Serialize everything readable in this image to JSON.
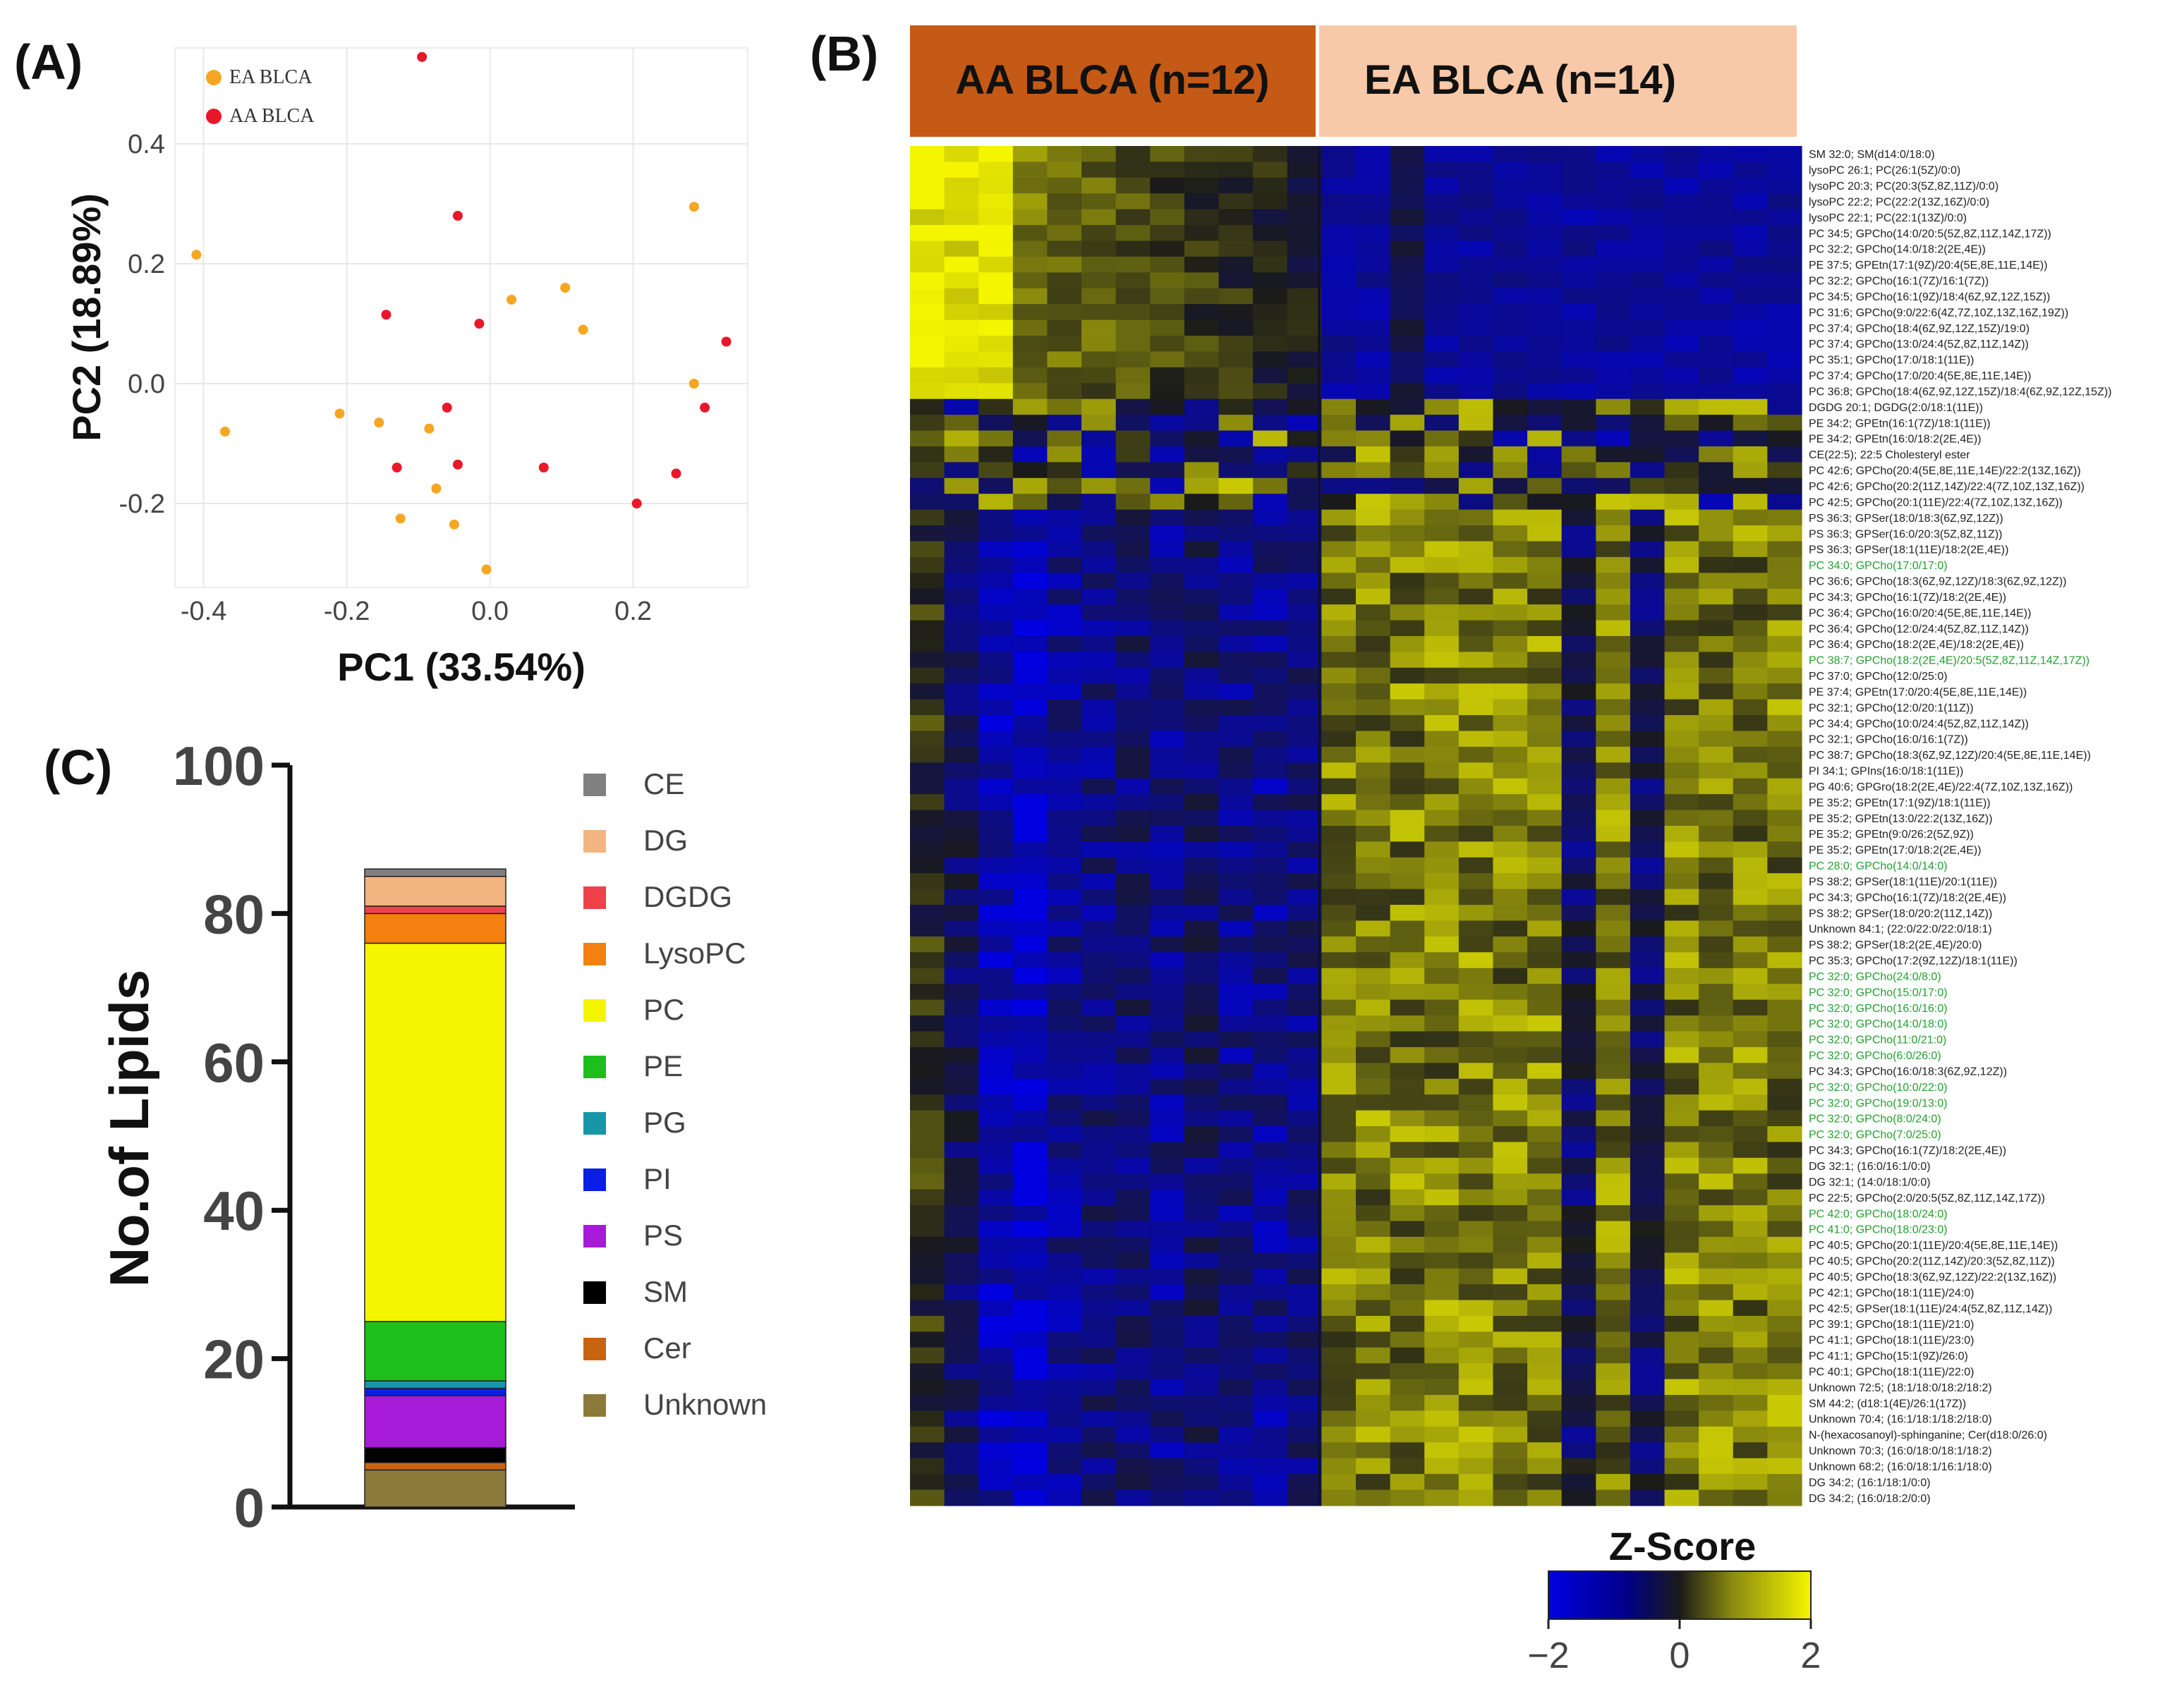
{
  "panels": {
    "a": "(A)",
    "b": "(B)",
    "c": "(C)"
  },
  "colors": {
    "ea": "#F6A623",
    "aa": "#E8182A",
    "low": "#0000E0",
    "mid": "#1a1a1a",
    "high": "#F5F500",
    "aa_header": "#C45A15",
    "ea_header": "#F7C9A8",
    "green_label": "#22A02E"
  },
  "chart_data": [
    {
      "type": "scatter",
      "title": "",
      "xlabel": "PC1 (33.54%)",
      "ylabel": "PC2 (18.89%)",
      "xlim": [
        -0.44,
        0.36
      ],
      "ylim": [
        -0.34,
        0.56
      ],
      "xticks": [
        -0.4,
        -0.2,
        0.0,
        0.2
      ],
      "xtick_labels": [
        "-0.4",
        "-0.2",
        "0.0",
        "0.2"
      ],
      "yticks": [
        -0.2,
        0.0,
        0.2,
        0.4
      ],
      "ytick_labels": [
        "-0.2",
        "0.0",
        "0.2",
        "0.4"
      ],
      "legend": [
        {
          "name": "EA BLCA",
          "color": "#F6A623"
        },
        {
          "name": "AA BLCA",
          "color": "#E8182A"
        }
      ],
      "series": [
        {
          "name": "EA BLCA",
          "color": "#F6A623",
          "points": [
            [
              -0.41,
              0.215
            ],
            [
              -0.37,
              -0.08
            ],
            [
              -0.21,
              -0.05
            ],
            [
              -0.155,
              -0.065
            ],
            [
              -0.125,
              -0.225
            ],
            [
              -0.085,
              -0.075
            ],
            [
              -0.075,
              -0.175
            ],
            [
              -0.05,
              -0.235
            ],
            [
              -0.005,
              -0.31
            ],
            [
              0.03,
              0.14
            ],
            [
              0.105,
              0.16
            ],
            [
              0.13,
              0.09
            ],
            [
              0.285,
              0.295
            ],
            [
              0.285,
              0.0
            ]
          ]
        },
        {
          "name": "AA BLCA",
          "color": "#E8182A",
          "points": [
            [
              -0.095,
              0.545
            ],
            [
              -0.045,
              0.28
            ],
            [
              -0.145,
              0.115
            ],
            [
              -0.015,
              0.1
            ],
            [
              -0.06,
              -0.04
            ],
            [
              -0.13,
              -0.14
            ],
            [
              -0.045,
              -0.135
            ],
            [
              0.075,
              -0.14
            ],
            [
              0.205,
              -0.2
            ],
            [
              0.26,
              -0.15
            ],
            [
              0.3,
              -0.04
            ],
            [
              0.33,
              0.07
            ]
          ]
        }
      ]
    },
    {
      "type": "heatmap",
      "groups": [
        {
          "name": "AA BLCA (n=12)",
          "n": 12
        },
        {
          "name": "EA BLCA (n=14)",
          "n": 14
        }
      ],
      "colorbar_title": "Z-Score",
      "colorbar_ticks": [
        "−2",
        "0",
        "2"
      ],
      "value_range": [
        -2,
        2
      ],
      "rows": [
        "SM 32:0; SM(d14:0/18:0)",
        "lysoPC 26:1; PC(26:1(5Z)/0:0)",
        "lysoPC 20:3; PC(20:3(5Z,8Z,11Z)/0:0)",
        "lysoPC 22:2; PC(22:2(13Z,16Z)/0:0)",
        "lysoPC 22:1; PC(22:1(13Z)/0:0)",
        "PC 34:5; GPCho(14:0/20:5(5Z,8Z,11Z,14Z,17Z))",
        "PC 32:2; GPCho(14:0/18:2(2E,4E))",
        "PE 37:5; GPEtn(17:1(9Z)/20:4(5E,8E,11E,14E))",
        "PC 32:2; GPCho(16:1(7Z)/16:1(7Z))",
        "PC 34:5; GPCho(16:1(9Z)/18:4(6Z,9Z,12Z,15Z))",
        "PC 31:6; GPCho(9:0/22:6(4Z,7Z,10Z,13Z,16Z,19Z))",
        "PC 37:4; GPCho(18:4(6Z,9Z,12Z,15Z)/19:0)",
        "PC 37:4; GPCho(13:0/24:4(5Z,8Z,11Z,14Z))",
        "PC 35:1; GPCho(17:0/18:1(11E))",
        "PC 37:4; GPCho(17:0/20:4(5E,8E,11E,14E))",
        "PC 36:8; GPCho(18:4(6Z,9Z,12Z,15Z)/18:4(6Z,9Z,12Z,15Z))",
        "DGDG 20:1; DGDG(2:0/18:1(11E))",
        "PE 34:2; GPEtn(16:1(7Z)/18:1(11E))",
        "PE 34:2; GPEtn(16:0/18:2(2E,4E))",
        "CE(22:5); 22:5 Cholesteryl ester",
        "PC 42:6; GPCho(20:4(5E,8E,11E,14E)/22:2(13Z,16Z))",
        "PC 42:6; GPCho(20:2(11Z,14Z)/22:4(7Z,10Z,13Z,16Z))",
        "PC 42:5; GPCho(20:1(11E)/22:4(7Z,10Z,13Z,16Z))",
        "PS 36:3; GPSer(18:0/18:3(6Z,9Z,12Z))",
        "PS 36:3; GPSer(16:0/20:3(5Z,8Z,11Z))",
        "PS 36:3; GPSer(18:1(11E)/18:2(2E,4E))",
        "PC 34:0; GPCho(17:0/17:0)",
        "PC 36:6; GPCho(18:3(6Z,9Z,12Z)/18:3(6Z,9Z,12Z))",
        "PC 34:3; GPCho(16:1(7Z)/18:2(2E,4E))",
        "PC 36:4; GPCho(16:0/20:4(5E,8E,11E,14E))",
        "PC 36:4; GPCho(12:0/24:4(5Z,8Z,11Z,14Z))",
        "PC 36:4; GPCho(18:2(2E,4E)/18:2(2E,4E))",
        "PC 38:7; GPCho(18:2(2E,4E)/20:5(5Z,8Z,11Z,14Z,17Z))",
        "PC 37:0; GPCho(12:0/25:0)",
        "PE 37:4; GPEtn(17:0/20:4(5E,8E,11E,14E))",
        "PC 32:1; GPCho(12:0/20:1(11Z))",
        "PC 34:4; GPCho(10:0/24:4(5Z,8Z,11Z,14Z))",
        "PC 32:1; GPCho(16:0/16:1(7Z))",
        "PC 38:7; GPCho(18:3(6Z,9Z,12Z)/20:4(5E,8E,11E,14E))",
        "PI 34:1; GPIns(16:0/18:1(11E))",
        "PG 40:6; GPGro(18:2(2E,4E)/22:4(7Z,10Z,13Z,16Z))",
        "PE 35:2; GPEtn(17:1(9Z)/18:1(11E))",
        "PE 35:2; GPEtn(13:0/22:2(13Z,16Z))",
        "PE 35:2; GPEtn(9:0/26:2(5Z,9Z))",
        "PE 35:2; GPEtn(17:0/18:2(2E,4E))",
        "PC 28:0; GPCho(14:0/14:0)",
        "PS 38:2; GPSer(18:1(11E)/20:1(11E))",
        "PC 34:3; GPCho(16:1(7Z)/18:2(2E,4E))",
        "PS 38:2; GPSer(18:0/20:2(11Z,14Z))",
        "Unknown 84:1; (22:0/22:0/22:0/18:1)",
        "PS 38:2; GPSer(18:2(2E,4E)/20:0)",
        "PC 35:3; GPCho(17:2(9Z,12Z)/18:1(11E))",
        "PC 32:0; GPCho(24:0/8:0)",
        "PC 32:0; GPCho(15:0/17:0)",
        "PC 32:0; GPCho(16:0/16:0)",
        "PC 32:0; GPCho(14:0/18:0)",
        "PC 32:0; GPCho(11:0/21:0)",
        "PC 32:0; GPCho(6:0/26:0)",
        "PC 34:3; GPCho(16:0/18:3(6Z,9Z,12Z))",
        "PC 32:0; GPCho(10:0/22:0)",
        "PC 32:0; GPCho(19:0/13:0)",
        "PC 32:0; GPCho(8:0/24:0)",
        "PC 32:0; GPCho(7:0/25:0)",
        "PC 34:3; GPCho(16:1(7Z)/18:2(2E,4E))",
        "DG 32:1; (16:0/16:1/0:0)",
        "DG 32:1; (14:0/18:1/0:0)",
        "PC 22:5; GPCho(2:0/20:5(5Z,8Z,11Z,14Z,17Z))",
        "PC 42:0; GPCho(18:0/24:0)",
        "PC 41:0; GPCho(18:0/23:0)",
        "PC 40:5; GPCho(20:1(11E)/20:4(5E,8E,11E,14E))",
        "PC 40:5; GPCho(20:2(11Z,14Z)/20:3(5Z,8Z,11Z))",
        "PC 40:5; GPCho(18:3(6Z,9Z,12Z)/22:2(13Z,16Z))",
        "PC 42:1; GPCho(18:1(11E)/24:0)",
        "PC 42:5; GPSer(18:1(11E)/24:4(5Z,8Z,11Z,14Z))",
        "PC 39:1; GPCho(18:1(11E)/21:0)",
        "PC 41:1; GPCho(18:1(11E)/23:0)",
        "PC 41:1; GPCho(15:1(9Z)/26:0)",
        "PC 40:1; GPCho(18:1(11E)/22:0)",
        "Unknown 72:5; (18:1/18:0/18:2/18:2)",
        "SM 44:2; (d18:1(4E)/26:1(17Z))",
        "Unknown 70:4; (16:1/18:1/18:2/18:0)",
        "N-(hexacosanoyl)-sphinganine; Cer(d18:0/26:0)",
        "Unknown 70:3; (16:0/18:0/18:1/18:2)",
        "Unknown 68:2; (16:0/18:1/16:1/18:0)",
        "DG 34:2; (16:1/18:1/0:0)",
        "DG 34:2; (16:0/18:2/0:0)"
      ],
      "green_rows": [
        26,
        32,
        45,
        52,
        53,
        54,
        55,
        56,
        57,
        59,
        60,
        61,
        62,
        67,
        68
      ]
    },
    {
      "type": "bar",
      "stacked": true,
      "ylabel": "No.of Lipids",
      "xlabel": "",
      "ylim": [
        0,
        100
      ],
      "yticks": [
        0,
        20,
        40,
        60,
        80,
        100
      ],
      "ytick_labels": [
        "0",
        "20",
        "40",
        "60",
        "80",
        "100"
      ],
      "categories": [
        ""
      ],
      "series": [
        {
          "name": "Unknown",
          "color": "#8C7A3A",
          "values": [
            5
          ]
        },
        {
          "name": "Cer",
          "color": "#C8640F",
          "values": [
            1
          ]
        },
        {
          "name": "SM",
          "color": "#000000",
          "values": [
            2
          ]
        },
        {
          "name": "PS",
          "color": "#A61AD8",
          "values": [
            7
          ]
        },
        {
          "name": "PI",
          "color": "#0A1EE6",
          "values": [
            1
          ]
        },
        {
          "name": "PG",
          "color": "#1796A8",
          "values": [
            1
          ]
        },
        {
          "name": "PE",
          "color": "#1CBF1C",
          "values": [
            8
          ]
        },
        {
          "name": "PC",
          "color": "#F5F500",
          "values": [
            51
          ]
        },
        {
          "name": "LysoPC",
          "color": "#F57F10",
          "values": [
            4
          ]
        },
        {
          "name": "DGDG",
          "color": "#F0404A",
          "values": [
            1
          ]
        },
        {
          "name": "DG",
          "color": "#F2B582",
          "values": [
            4
          ]
        },
        {
          "name": "CE",
          "color": "#808080",
          "values": [
            1
          ]
        }
      ],
      "legend_order": [
        "CE",
        "DG",
        "DGDG",
        "LysoPC",
        "PC",
        "PE",
        "PG",
        "PI",
        "PS",
        "SM",
        "Cer",
        "Unknown"
      ]
    }
  ]
}
